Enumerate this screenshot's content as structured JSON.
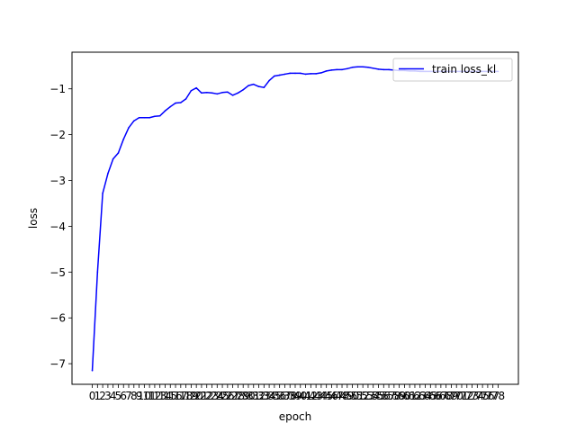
{
  "chart_data": {
    "type": "line",
    "title": "",
    "xlabel": "epoch",
    "ylabel": "loss",
    "x": [
      0,
      1,
      2,
      3,
      4,
      5,
      6,
      7,
      8,
      9,
      10,
      11,
      12,
      13,
      14,
      15,
      16,
      17,
      18,
      19,
      20,
      21,
      22,
      23,
      24,
      25,
      26,
      27,
      28,
      29,
      30,
      31,
      32,
      33,
      34,
      35,
      36,
      37,
      38,
      39,
      40,
      41,
      42,
      43,
      44,
      45,
      46,
      47,
      48,
      49,
      50,
      51,
      52,
      53,
      54,
      55,
      56,
      57,
      58,
      59,
      60,
      61,
      62,
      63,
      64,
      65,
      66,
      67,
      68,
      69,
      70,
      71,
      72,
      73,
      74,
      75,
      76,
      77,
      78
    ],
    "xticks": [
      "0",
      "1",
      "2",
      "3",
      "4",
      "5",
      "6",
      "7",
      "8",
      "9",
      "10",
      "11",
      "12",
      "13",
      "14",
      "15",
      "16",
      "17",
      "18",
      "19",
      "20",
      "21",
      "22",
      "23",
      "24",
      "25",
      "26",
      "27",
      "28",
      "29",
      "30",
      "31",
      "32",
      "33",
      "34",
      "35",
      "36",
      "37",
      "38",
      "39",
      "40",
      "41",
      "42",
      "43",
      "44",
      "45",
      "46",
      "47",
      "48",
      "49",
      "50",
      "51",
      "52",
      "53",
      "54",
      "55",
      "56",
      "57",
      "58",
      "59",
      "60",
      "61",
      "62",
      "63",
      "64",
      "65",
      "66",
      "67",
      "68",
      "69",
      "70",
      "71",
      "72",
      "73",
      "74",
      "75",
      "76",
      "77",
      "78"
    ],
    "yticks": [
      -7,
      -6,
      -5,
      -4,
      -3,
      -2,
      -1
    ],
    "ytick_labels": [
      "−7",
      "−6",
      "−5",
      "−4",
      "−3",
      "−2",
      "−1"
    ],
    "xlim": [
      -3.9,
      81.9
    ],
    "ylim": [
      -7.45,
      -0.2
    ],
    "grid": false,
    "legend_position": "upper right",
    "series": [
      {
        "name": "train loss_kl",
        "color": "#0000ff",
        "values": [
          -7.15,
          -5.0,
          -3.28,
          -2.85,
          -2.53,
          -2.4,
          -2.1,
          -1.85,
          -1.7,
          -1.63,
          -1.63,
          -1.63,
          -1.6,
          -1.59,
          -1.48,
          -1.39,
          -1.31,
          -1.3,
          -1.22,
          -1.04,
          -0.98,
          -1.09,
          -1.08,
          -1.09,
          -1.11,
          -1.08,
          -1.07,
          -1.14,
          -1.09,
          -1.02,
          -0.93,
          -0.9,
          -0.95,
          -0.97,
          -0.82,
          -0.72,
          -0.7,
          -0.68,
          -0.66,
          -0.66,
          -0.66,
          -0.68,
          -0.67,
          -0.67,
          -0.65,
          -0.61,
          -0.59,
          -0.58,
          -0.58,
          -0.56,
          -0.53,
          -0.52,
          -0.52,
          -0.53,
          -0.55,
          -0.57,
          -0.58,
          -0.58,
          -0.59,
          -0.6,
          -0.6,
          -0.61,
          -0.61,
          -0.62,
          -0.62,
          -0.62,
          -0.62,
          -0.62,
          -0.62,
          -0.62,
          -0.62,
          -0.62,
          -0.62,
          -0.62,
          -0.62,
          -0.62,
          -0.62,
          -0.62,
          -0.62
        ]
      }
    ]
  }
}
